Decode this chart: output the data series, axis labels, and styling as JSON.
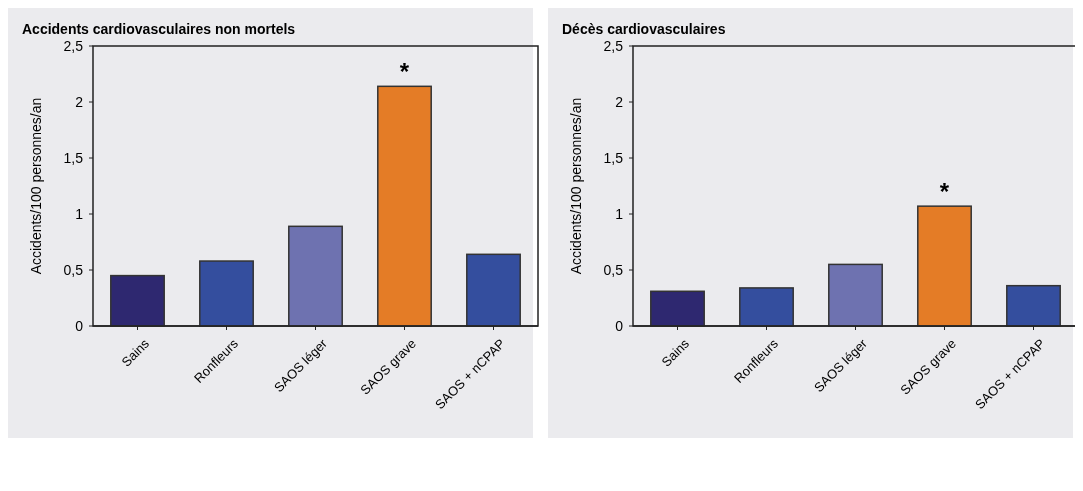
{
  "chart_data": [
    {
      "type": "bar",
      "title": "Accidents cardiovasculaires non mortels",
      "ylabel": "Accidents/100 personnes/an",
      "categories": [
        "Sains",
        "Ronfleurs",
        "SAOS léger",
        "SAOS grave",
        "SAOS + nCPAP"
      ],
      "values": [
        0.45,
        0.58,
        0.89,
        2.14,
        0.64
      ],
      "colors": [
        "#2e2870",
        "#344e9e",
        "#6e72b0",
        "#e47c26",
        "#344e9e"
      ],
      "ylim": [
        0,
        2.5
      ],
      "yticks": [
        {
          "value": 0,
          "label": "0"
        },
        {
          "value": 0.5,
          "label": "0,5"
        },
        {
          "value": 1,
          "label": "1"
        },
        {
          "value": 1.5,
          "label": "1,5"
        },
        {
          "value": 2,
          "label": "2"
        },
        {
          "value": 2.5,
          "label": "2,5"
        }
      ],
      "annotations": [
        {
          "text": "*",
          "x": "SAOS grave",
          "y": 2.14
        }
      ]
    },
    {
      "type": "bar",
      "title": "Décès cardiovasculaires",
      "ylabel": "Accidents/100 personnes/an",
      "categories": [
        "Sains",
        "Ronfleurs",
        "SAOS léger",
        "SAOS grave",
        "SAOS + nCPAP"
      ],
      "values": [
        0.31,
        0.34,
        0.55,
        1.07,
        0.36
      ],
      "colors": [
        "#2e2870",
        "#344e9e",
        "#6e72b0",
        "#e47c26",
        "#344e9e"
      ],
      "ylim": [
        0,
        2.5
      ],
      "yticks": [
        {
          "value": 0,
          "label": "0"
        },
        {
          "value": 0.5,
          "label": "0,5"
        },
        {
          "value": 1,
          "label": "1"
        },
        {
          "value": 1.5,
          "label": "1,5"
        },
        {
          "value": 2,
          "label": "2"
        },
        {
          "value": 2.5,
          "label": "2,5"
        }
      ],
      "annotations": [
        {
          "text": "*",
          "x": "SAOS grave",
          "y": 1.07
        }
      ]
    }
  ]
}
